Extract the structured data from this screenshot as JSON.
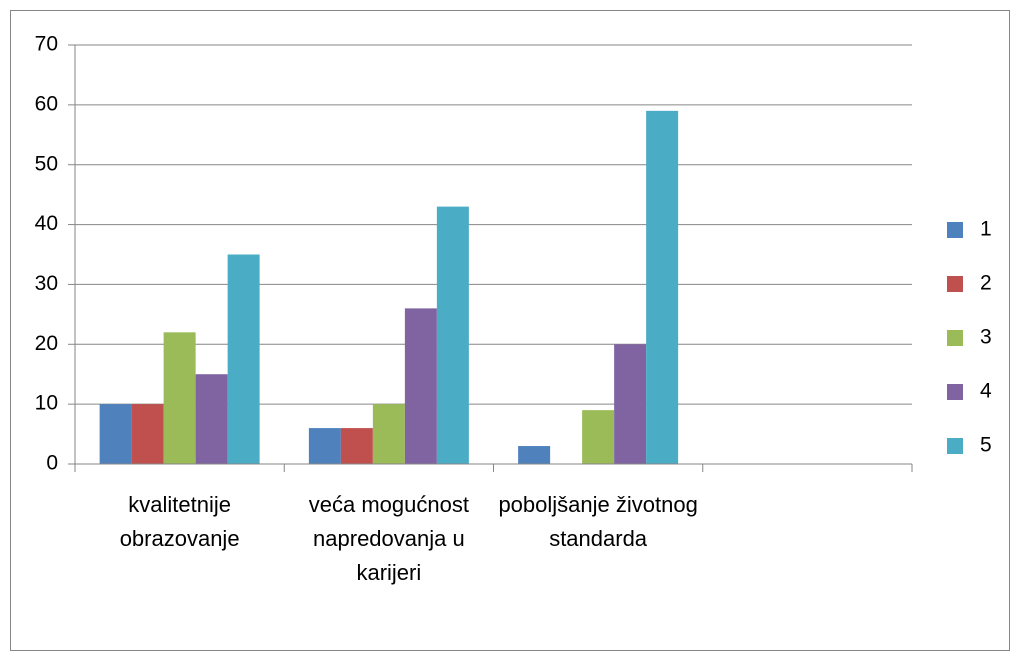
{
  "chart_data": {
    "type": "bar",
    "categories": [
      "kvalitetnije obrazovanje",
      "veća mogućnost napredovanja u karijeri",
      "poboljšanje životnog standarda",
      null
    ],
    "series": [
      {
        "name": "1",
        "color": "#4f81bd",
        "values": [
          10,
          6,
          3,
          null
        ]
      },
      {
        "name": "2",
        "color": "#c0504d",
        "values": [
          10,
          6,
          null,
          null
        ]
      },
      {
        "name": "3",
        "color": "#9bbb59",
        "values": [
          22,
          10,
          9,
          null
        ]
      },
      {
        "name": "4",
        "color": "#8064a2",
        "values": [
          15,
          26,
          20,
          null
        ]
      },
      {
        "name": "5",
        "color": "#4bacc6",
        "values": [
          35,
          43,
          59,
          null
        ]
      }
    ],
    "ylim": [
      0,
      70
    ],
    "yticks": [
      0,
      10,
      20,
      30,
      40,
      50,
      60,
      70
    ],
    "grid": true,
    "legend": "right"
  }
}
